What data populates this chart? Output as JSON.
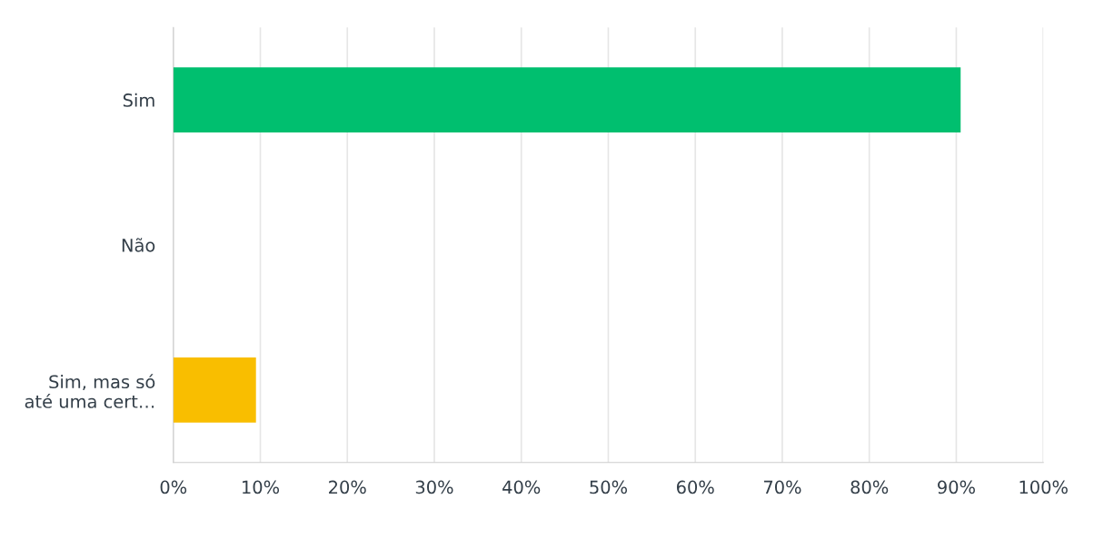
{
  "chart_data": {
    "type": "bar",
    "orientation": "horizontal",
    "categories": [
      "Sim",
      "Não",
      "Sim, mas só\naté uma cert…"
    ],
    "values": [
      90.5,
      0,
      9.5
    ],
    "colors": [
      "#00bf6f",
      "#2dccd3",
      "#f9be00"
    ],
    "xlim": [
      0,
      100
    ],
    "xticks": [
      {
        "value": 0,
        "label": "0%"
      },
      {
        "value": 10,
        "label": "10%"
      },
      {
        "value": 20,
        "label": "20%"
      },
      {
        "value": 30,
        "label": "30%"
      },
      {
        "value": 40,
        "label": "40%"
      },
      {
        "value": 50,
        "label": "50%"
      },
      {
        "value": 60,
        "label": "60%"
      },
      {
        "value": 70,
        "label": "70%"
      },
      {
        "value": 80,
        "label": "80%"
      },
      {
        "value": 90,
        "label": "90%"
      },
      {
        "value": 100,
        "label": "100%"
      }
    ],
    "grid": "x",
    "legend": false
  }
}
